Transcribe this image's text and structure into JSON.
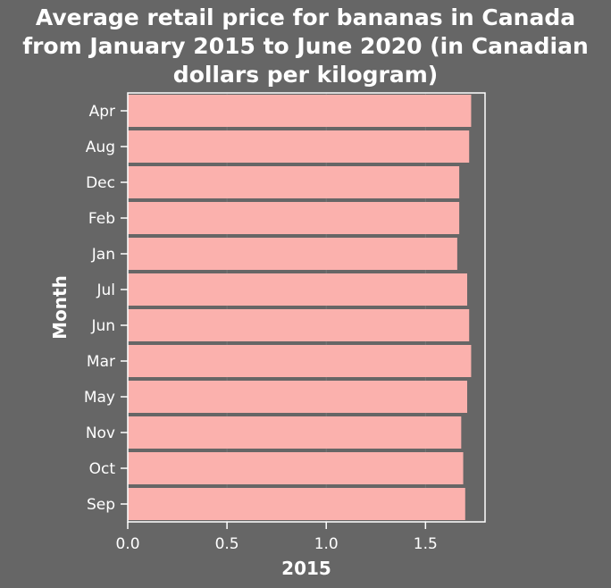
{
  "chart_data": {
    "type": "bar",
    "orientation": "horizontal",
    "title_lines": [
      "Average retail price for bananas in Canada",
      "from January 2015 to June 2020 (in Canadian",
      "dollars per kilogram)"
    ],
    "xlabel": "2015",
    "ylabel": "Month",
    "categories": [
      "Apr",
      "Aug",
      "Dec",
      "Feb",
      "Jan",
      "Jul",
      "Jun",
      "Mar",
      "May",
      "Nov",
      "Oct",
      "Sep"
    ],
    "values": [
      1.73,
      1.72,
      1.67,
      1.67,
      1.66,
      1.71,
      1.72,
      1.73,
      1.71,
      1.68,
      1.69,
      1.7
    ],
    "xlim": [
      0,
      1.8
    ],
    "xticks": [
      0.0,
      0.5,
      1.0,
      1.5
    ],
    "xtick_labels": [
      "0.0",
      "0.5",
      "1.0",
      "1.5"
    ],
    "grid": true,
    "colors": {
      "background": "#666666",
      "bar": "#fbb1ad",
      "grid": "#777777",
      "text": "#ffffff"
    }
  }
}
